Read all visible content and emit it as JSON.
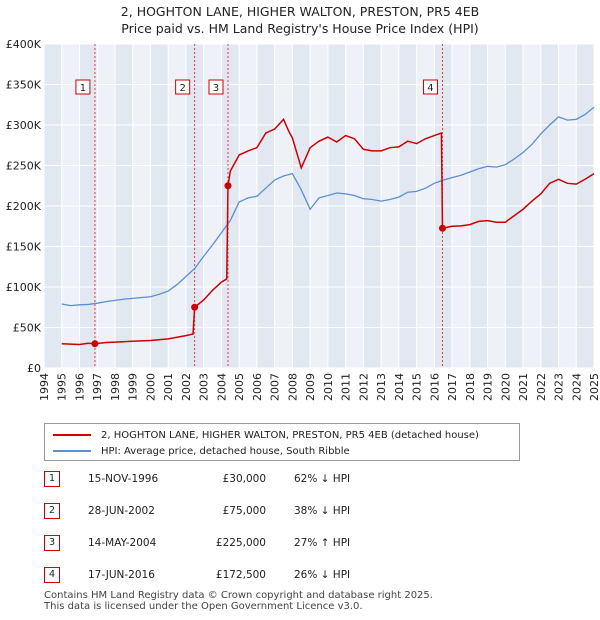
{
  "title_line1": "2, HOGHTON LANE, HIGHER WALTON, PRESTON, PR5 4EB",
  "title_line2": "Price paid vs. HM Land Registry's House Price Index (HPI)",
  "colors": {
    "price_line": "#cc0000",
    "hpi_line": "#5b8fd1",
    "plot_bg": "#eef2f8",
    "band": "#e2e8f2"
  },
  "legend": {
    "price": "2, HOGHTON LANE, HIGHER WALTON, PRESTON, PR5 4EB (detached house)",
    "hpi": "HPI: Average price, detached house, South Ribble"
  },
  "sales": [
    {
      "num": "1",
      "date": "15-NOV-1996",
      "price": "£30,000",
      "hpi": "62% ↓ HPI"
    },
    {
      "num": "2",
      "date": "28-JUN-2002",
      "price": "£75,000",
      "hpi": "38% ↓ HPI"
    },
    {
      "num": "3",
      "date": "14-MAY-2004",
      "price": "£225,000",
      "hpi": "27% ↑ HPI"
    },
    {
      "num": "4",
      "date": "17-JUN-2016",
      "price": "£172,500",
      "hpi": "26% ↓ HPI"
    }
  ],
  "footer_line1": "Contains HM Land Registry data © Crown copyright and database right 2025.",
  "footer_line2": "This data is licensed under the Open Government Licence v3.0.",
  "chart_data": {
    "type": "line",
    "title": "2, HOGHTON LANE, HIGHER WALTON, PRESTON, PR5 4EB",
    "subtitle": "Price paid vs. HM Land Registry's House Price Index (HPI)",
    "xlabel": "",
    "ylabel": "",
    "xlim": [
      1994,
      2025
    ],
    "ylim": [
      0,
      400000
    ],
    "x_ticks": [
      "1994",
      "1995",
      "1996",
      "1997",
      "1998",
      "1999",
      "2000",
      "2001",
      "2002",
      "2003",
      "2004",
      "2005",
      "2006",
      "2007",
      "2008",
      "2009",
      "2010",
      "2011",
      "2012",
      "2013",
      "2014",
      "2015",
      "2016",
      "2017",
      "2018",
      "2019",
      "2020",
      "2021",
      "2022",
      "2023",
      "2024",
      "2025"
    ],
    "y_ticks": [
      {
        "value": 0,
        "label": "£0"
      },
      {
        "value": 50000,
        "label": "£50K"
      },
      {
        "value": 100000,
        "label": "£100K"
      },
      {
        "value": 150000,
        "label": "£150K"
      },
      {
        "value": 200000,
        "label": "£200K"
      },
      {
        "value": 250000,
        "label": "£250K"
      },
      {
        "value": 300000,
        "label": "£300K"
      },
      {
        "value": 350000,
        "label": "£350K"
      },
      {
        "value": 400000,
        "label": "£400K"
      }
    ],
    "grid": true,
    "series": [
      {
        "name": "2, HOGHTON LANE, HIGHER WALTON, PRESTON, PR5 4EB (detached house)",
        "x": [
          1995.0,
          1995.5,
          1996.0,
          1996.5,
          1996.87,
          1997.5,
          1998.0,
          1999.0,
          2000.0,
          2001.0,
          2002.0,
          2002.4,
          2002.49,
          2003.0,
          2003.5,
          2004.0,
          2004.3,
          2004.37,
          2004.5,
          2005.0,
          2005.5,
          2006.0,
          2006.5,
          2007.0,
          2007.5,
          2007.8,
          2008.0,
          2008.5,
          2009.0,
          2009.5,
          2010.0,
          2010.5,
          2011.0,
          2011.5,
          2012.0,
          2012.5,
          2013.0,
          2013.5,
          2014.0,
          2014.5,
          2015.0,
          2015.5,
          2016.0,
          2016.4,
          2016.46,
          2017.0,
          2017.5,
          2018.0,
          2018.5,
          2019.0,
          2019.5,
          2020.0,
          2020.5,
          2021.0,
          2021.5,
          2022.0,
          2022.5,
          2023.0,
          2023.5,
          2024.0,
          2024.5,
          2025.0
        ],
        "values": [
          30000,
          29500,
          29000,
          30500,
          30000,
          31500,
          32000,
          33000,
          34000,
          36000,
          40000,
          42000,
          75000,
          84000,
          96000,
          106000,
          110000,
          225000,
          243000,
          263000,
          268000,
          272000,
          290000,
          295000,
          307000,
          292000,
          284000,
          247000,
          272000,
          280000,
          285000,
          279000,
          287000,
          283000,
          270000,
          268000,
          268000,
          272000,
          273000,
          280000,
          277000,
          283000,
          287000,
          290000,
          172500,
          175000,
          175500,
          177000,
          181000,
          182000,
          180000,
          180000,
          188000,
          196000,
          206000,
          215000,
          228000,
          233000,
          228000,
          227000,
          233000,
          240000
        ]
      },
      {
        "name": "HPI: Average price, detached house, South Ribble",
        "x": [
          1995.0,
          1995.5,
          1996.0,
          1996.5,
          1997.0,
          1997.5,
          1998.0,
          1998.5,
          1999.0,
          1999.5,
          2000.0,
          2000.5,
          2001.0,
          2001.5,
          2002.0,
          2002.5,
          2003.0,
          2003.5,
          2004.0,
          2004.5,
          2005.0,
          2005.5,
          2006.0,
          2006.5,
          2007.0,
          2007.5,
          2008.0,
          2008.5,
          2009.0,
          2009.5,
          2010.0,
          2010.5,
          2011.0,
          2011.5,
          2012.0,
          2012.5,
          2013.0,
          2013.5,
          2014.0,
          2014.5,
          2015.0,
          2015.5,
          2016.0,
          2016.5,
          2017.0,
          2017.5,
          2018.0,
          2018.5,
          2019.0,
          2019.5,
          2020.0,
          2020.5,
          2021.0,
          2021.5,
          2022.0,
          2022.5,
          2023.0,
          2023.5,
          2024.0,
          2024.5,
          2025.0
        ],
        "values": [
          79000,
          77000,
          78000,
          78500,
          80000,
          82000,
          83500,
          85000,
          86000,
          87000,
          88000,
          91000,
          95000,
          103000,
          113000,
          123000,
          138000,
          152000,
          167000,
          182000,
          205000,
          210000,
          212000,
          222000,
          232000,
          237000,
          240000,
          220000,
          196000,
          210000,
          213000,
          216000,
          215000,
          213000,
          209000,
          208000,
          206000,
          208000,
          211000,
          217000,
          218000,
          222000,
          228000,
          232000,
          235000,
          238000,
          242000,
          246000,
          249000,
          248000,
          251000,
          258000,
          266000,
          276000,
          289000,
          300000,
          310000,
          306000,
          307000,
          313000,
          322000
        ]
      }
    ],
    "sale_markers": [
      {
        "label": "1",
        "x": 1996.87,
        "value": 30000
      },
      {
        "label": "2",
        "x": 2002.49,
        "value": 75000
      },
      {
        "label": "3",
        "x": 2004.37,
        "value": 225000
      },
      {
        "label": "4",
        "x": 2016.46,
        "value": 172500
      }
    ]
  }
}
